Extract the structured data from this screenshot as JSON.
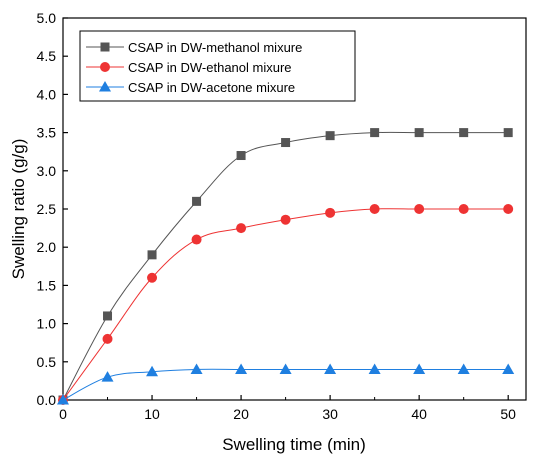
{
  "chart_data": {
    "type": "line",
    "xlabel": "Swelling time (min)",
    "ylabel": "Swelling ratio (g/g)",
    "xlim": [
      0,
      52
    ],
    "ylim": [
      0,
      5.0
    ],
    "x_ticks": [
      0,
      10,
      20,
      30,
      40,
      50
    ],
    "y_ticks": [
      "0.0",
      "0.5",
      "1.0",
      "1.5",
      "2.0",
      "2.5",
      "3.0",
      "3.5",
      "4.0",
      "4.5",
      "5.0"
    ],
    "legend_placement": "top-left",
    "grid": false,
    "series": [
      {
        "name": "CSAP in DW-methanol mixure",
        "color": "#555555",
        "marker": "square",
        "x": [
          0,
          5,
          10,
          15,
          20,
          25,
          30,
          35,
          40,
          45,
          50
        ],
        "y": [
          0.0,
          1.1,
          1.9,
          2.6,
          3.2,
          3.37,
          3.46,
          3.5,
          3.5,
          3.5,
          3.5
        ]
      },
      {
        "name": "CSAP in DW-ethanol mixure",
        "color": "#ee3333",
        "marker": "circle",
        "x": [
          0,
          5,
          10,
          15,
          20,
          25,
          30,
          35,
          40,
          45,
          50
        ],
        "y": [
          0.0,
          0.8,
          1.6,
          2.1,
          2.25,
          2.36,
          2.45,
          2.5,
          2.5,
          2.5,
          2.5
        ]
      },
      {
        "name": "CSAP in DW-acetone mixure",
        "color": "#1f7fe0",
        "marker": "triangle",
        "x": [
          0,
          5,
          10,
          15,
          20,
          25,
          30,
          35,
          40,
          45,
          50
        ],
        "y": [
          0.0,
          0.3,
          0.37,
          0.4,
          0.4,
          0.4,
          0.4,
          0.4,
          0.4,
          0.4,
          0.4
        ]
      }
    ]
  }
}
